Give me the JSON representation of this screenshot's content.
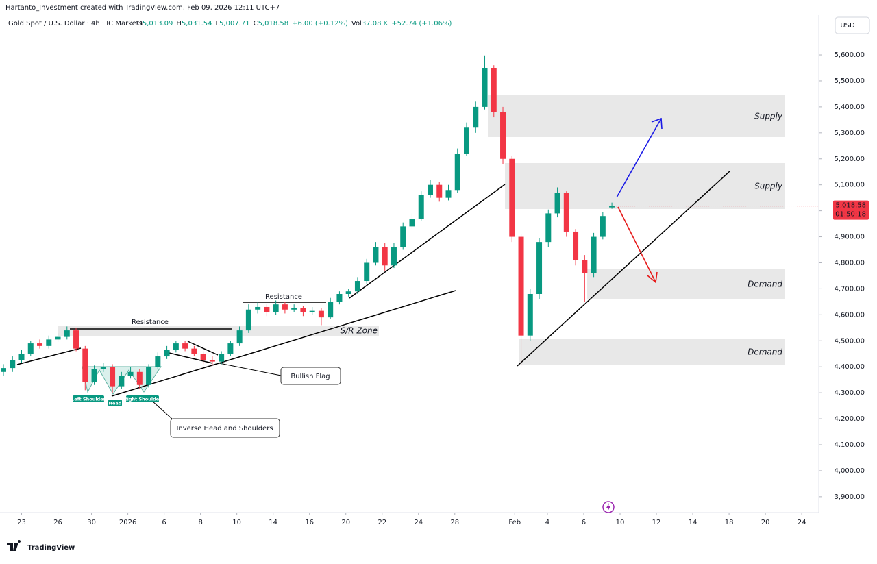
{
  "header": {
    "attribution": "Hartanto_Investment created with TradingView.com, Feb 09, 2026 12:11 UTC+7",
    "symbol": "Gold Spot / U.S. Dollar · 4h · IC Markets",
    "quote": [
      {
        "label": "O",
        "value": "5,013.09"
      },
      {
        "label": "H",
        "value": "5,031.54"
      },
      {
        "label": "L",
        "value": "5,007.71"
      },
      {
        "label": "C",
        "value": "5,018.58"
      }
    ],
    "change": "+6.00 (+0.12%)",
    "volume_label": "Vol",
    "volume": "37.08 K",
    "volume_change": "+52.74 (+1.06%)"
  },
  "currency": "USD",
  "annotations": {
    "supply_upper": "Supply",
    "supply_lower": "Supply",
    "demand_upper": "Demand",
    "demand_lower": "Demand",
    "sr_zone": "S/R Zone",
    "resistance_left": "Resistance",
    "resistance_right": "Resistance",
    "bullish_flag": "Bullish Flag",
    "ihs": "Inverse Head and Shoulders",
    "left_shoulder": "Left Shoulder",
    "head": "Head",
    "right_shoulder": "Right Shoulder"
  },
  "footer": "TradingView",
  "chart_data": {
    "type": "candlestick",
    "up_color": "#089981",
    "down_color": "#f23645",
    "x": [
      0,
      0.5,
      1,
      1.5,
      2,
      2.5,
      3,
      3.5,
      4,
      4.5,
      5,
      5.5,
      6,
      6.5,
      7,
      7.5,
      8,
      8.5,
      9,
      9.5,
      10,
      10.5,
      11,
      11.5,
      12,
      12.5,
      13,
      13.5,
      14,
      14.5,
      15,
      15.5,
      16,
      16.5,
      17,
      17.5,
      18,
      18.5,
      19,
      19.5,
      20,
      20.5,
      21,
      21.5,
      22,
      22.5,
      23,
      23.5,
      24,
      24.5,
      25,
      25.5,
      26,
      26.5,
      27,
      27.5,
      28,
      28.5,
      29,
      29.5,
      30,
      30.5,
      31,
      31.5,
      32,
      32.5,
      33,
      33.5
    ],
    "open": [
      4380,
      4395,
      4425,
      4450,
      4490,
      4480,
      4505,
      4515,
      4540,
      4470,
      4340,
      4390,
      4400,
      4325,
      4365,
      4380,
      4330,
      4400,
      4440,
      4465,
      4490,
      4470,
      4450,
      4425,
      4420,
      4450,
      4490,
      4540,
      4620,
      4630,
      4610,
      4640,
      4620,
      4625,
      4610,
      4615,
      4590,
      4650,
      4680,
      4690,
      4730,
      4800,
      4860,
      4790,
      4860,
      4940,
      4970,
      5060,
      5100,
      5050,
      5080,
      5220,
      5320,
      5400,
      5550,
      5380,
      5200,
      4900,
      4520,
      4680,
      4880,
      4990,
      5070,
      4920,
      4810,
      4760,
      4900,
      5013.09
    ],
    "high": [
      4410,
      4440,
      4465,
      4500,
      4505,
      4520,
      4530,
      4555,
      4550,
      4480,
      4405,
      4415,
      4410,
      4380,
      4400,
      4390,
      4410,
      4455,
      4480,
      4500,
      4500,
      4480,
      4460,
      4440,
      4460,
      4500,
      4555,
      4640,
      4650,
      4640,
      4655,
      4650,
      4640,
      4635,
      4630,
      4625,
      4665,
      4690,
      4700,
      4745,
      4815,
      4880,
      4875,
      4875,
      4955,
      4990,
      5075,
      5120,
      5110,
      5100,
      5240,
      5340,
      5420,
      5598,
      5560,
      5400,
      5210,
      4910,
      4700,
      4895,
      5005,
      5090,
      5075,
      4930,
      4830,
      4915,
      4995,
      5031.54
    ],
    "low": [
      4365,
      4380,
      4415,
      4440,
      4470,
      4470,
      4495,
      4505,
      4460,
      4310,
      4330,
      4380,
      4300,
      4315,
      4355,
      4315,
      4320,
      4390,
      4430,
      4455,
      4460,
      4440,
      4410,
      4405,
      4410,
      4440,
      4480,
      4530,
      4605,
      4595,
      4600,
      4605,
      4610,
      4595,
      4600,
      4560,
      4585,
      4640,
      4670,
      4680,
      4720,
      4790,
      4770,
      4780,
      4850,
      4930,
      4960,
      5050,
      5035,
      5040,
      5070,
      5210,
      5300,
      5390,
      5360,
      5180,
      4880,
      4402,
      4500,
      4660,
      4860,
      4975,
      4900,
      4790,
      4650,
      4745,
      4890,
      5007.71
    ],
    "close": [
      4395,
      4425,
      4450,
      4490,
      4480,
      4505,
      4515,
      4540,
      4470,
      4340,
      4390,
      4400,
      4325,
      4365,
      4380,
      4330,
      4400,
      4440,
      4465,
      4490,
      4470,
      4450,
      4425,
      4420,
      4450,
      4490,
      4540,
      4620,
      4630,
      4610,
      4640,
      4620,
      4625,
      4610,
      4615,
      4590,
      4650,
      4680,
      4690,
      4730,
      4800,
      4860,
      4790,
      4860,
      4940,
      4970,
      5060,
      5100,
      5050,
      5080,
      5220,
      5320,
      5400,
      5550,
      5380,
      5200,
      4900,
      4520,
      4680,
      4880,
      4990,
      5070,
      4920,
      4810,
      4760,
      4900,
      4980,
      5018.58
    ],
    "last_price_label": "5,018.58",
    "countdown": "01:50:18",
    "xlim": [
      0,
      44.7
    ],
    "xticks": [
      {
        "value": 1,
        "label": "23"
      },
      {
        "value": 3,
        "label": "26"
      },
      {
        "value": 4.85,
        "label": "30"
      },
      {
        "value": 6.85,
        "label": "2026"
      },
      {
        "value": 8.85,
        "label": "6"
      },
      {
        "value": 10.85,
        "label": "8"
      },
      {
        "value": 12.85,
        "label": "10"
      },
      {
        "value": 14.85,
        "label": "14"
      },
      {
        "value": 16.85,
        "label": "16"
      },
      {
        "value": 18.85,
        "label": "20"
      },
      {
        "value": 20.85,
        "label": "22"
      },
      {
        "value": 22.85,
        "label": "24"
      },
      {
        "value": 24.85,
        "label": "28"
      },
      {
        "value": 28.15,
        "label": "Feb"
      },
      {
        "value": 29.95,
        "label": "4"
      },
      {
        "value": 31.95,
        "label": "6"
      },
      {
        "value": 33.95,
        "label": "10"
      },
      {
        "value": 35.95,
        "label": "12"
      },
      {
        "value": 37.95,
        "label": "14"
      },
      {
        "value": 39.95,
        "label": "18"
      },
      {
        "value": 41.95,
        "label": "20"
      },
      {
        "value": 43.95,
        "label": "24"
      }
    ],
    "ylim": [
      3839,
      5753
    ],
    "yticks": [
      {
        "value": 3900,
        "label": "3,900.00"
      },
      {
        "value": 4000,
        "label": "4,000.00"
      },
      {
        "value": 4100,
        "label": "4,100.00"
      },
      {
        "value": 4200,
        "label": "4,200.00"
      },
      {
        "value": 4300,
        "label": "4,300.00"
      },
      {
        "value": 4400,
        "label": "4,400.00"
      },
      {
        "value": 4500,
        "label": "4,500.00"
      },
      {
        "value": 4600,
        "label": "4,600.00"
      },
      {
        "value": 4700,
        "label": "4,700.00"
      },
      {
        "value": 4800,
        "label": "4,800.00"
      },
      {
        "value": 4900,
        "label": "4,900.00"
      },
      {
        "value": 5000,
        "label": "5,000.00"
      },
      {
        "value": 5100,
        "label": "5,100.00"
      },
      {
        "value": 5200,
        "label": "5,200.00"
      },
      {
        "value": 5300,
        "label": "5,300.00"
      },
      {
        "value": 5400,
        "label": "5,400.00"
      },
      {
        "value": 5500,
        "label": "5,500.00"
      },
      {
        "value": 5600,
        "label": "5,600.00"
      }
    ]
  }
}
